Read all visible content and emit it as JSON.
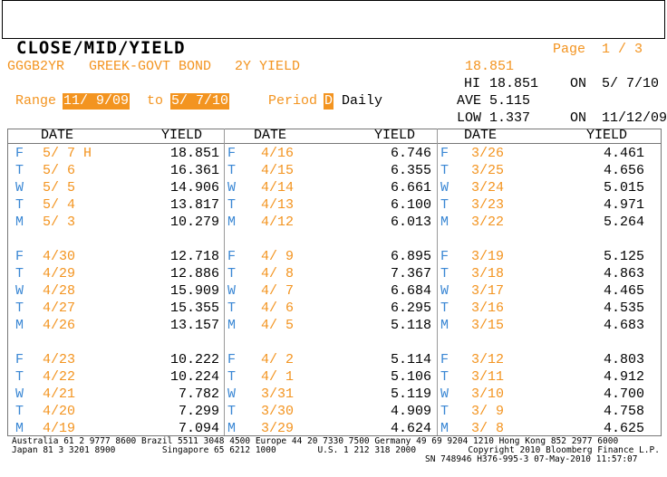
{
  "header": {
    "title": "CLOSE/MID/YIELD",
    "page": "Page  1 / 3",
    "ticker": "GGGB2YR",
    "security": "GREEK-GOVT BOND",
    "description": "2Y YIELD",
    "last": "18.851"
  },
  "stats": {
    "hi_label": "HI",
    "hi": "18.851",
    "hi_on": "ON",
    "hi_date": "5/ 7/10",
    "ave_label": "AVE",
    "ave": "5.115",
    "low_label": "LOW",
    "low": "1.337",
    "low_on": "ON",
    "low_date": "11/12/09"
  },
  "range": {
    "label": "Range",
    "start": "11/ 9/09",
    "to": "to",
    "end": "5/ 7/10",
    "period_label": "Period",
    "period_code": "D",
    "period_name": "Daily"
  },
  "table": {
    "columns": [
      {
        "date_header": "DATE",
        "yield_header": "YIELD",
        "rows": [
          [
            "F",
            "5/ 7 H",
            "18.851"
          ],
          [
            "T",
            "5/ 6",
            "16.361"
          ],
          [
            "W",
            "5/ 5",
            "14.906"
          ],
          [
            "T",
            "5/ 4",
            "13.817"
          ],
          [
            "M",
            "5/ 3",
            "10.279"
          ],
          [
            "F",
            "4/30",
            "12.718"
          ],
          [
            "T",
            "4/29",
            "12.886"
          ],
          [
            "W",
            "4/28",
            "15.909"
          ],
          [
            "T",
            "4/27",
            "15.355"
          ],
          [
            "M",
            "4/26",
            "13.157"
          ],
          [
            "F",
            "4/23",
            "10.222"
          ],
          [
            "T",
            "4/22",
            "10.224"
          ],
          [
            "W",
            "4/21",
            "7.782"
          ],
          [
            "T",
            "4/20",
            "7.299"
          ],
          [
            "M",
            "4/19",
            "7.094"
          ]
        ]
      },
      {
        "date_header": "DATE",
        "yield_header": "YIELD",
        "rows": [
          [
            "F",
            "4/16",
            "6.746"
          ],
          [
            "T",
            "4/15",
            "6.355"
          ],
          [
            "W",
            "4/14",
            "6.661"
          ],
          [
            "T",
            "4/13",
            "6.100"
          ],
          [
            "M",
            "4/12",
            "6.013"
          ],
          [
            "F",
            "4/ 9",
            "6.895"
          ],
          [
            "T",
            "4/ 8",
            "7.367"
          ],
          [
            "W",
            "4/ 7",
            "6.684"
          ],
          [
            "T",
            "4/ 6",
            "6.295"
          ],
          [
            "M",
            "4/ 5",
            "5.118"
          ],
          [
            "F",
            "4/ 2",
            "5.114"
          ],
          [
            "T",
            "4/ 1",
            "5.106"
          ],
          [
            "W",
            "3/31",
            "5.119"
          ],
          [
            "T",
            "3/30",
            "4.909"
          ],
          [
            "M",
            "3/29",
            "4.624"
          ]
        ]
      },
      {
        "date_header": "DATE",
        "yield_header": "YIELD",
        "rows": [
          [
            "F",
            "3/26",
            "4.461"
          ],
          [
            "T",
            "3/25",
            "4.656"
          ],
          [
            "W",
            "3/24",
            "5.015"
          ],
          [
            "T",
            "3/23",
            "4.971"
          ],
          [
            "M",
            "3/22",
            "5.264"
          ],
          [
            "F",
            "3/19",
            "5.125"
          ],
          [
            "T",
            "3/18",
            "4.863"
          ],
          [
            "W",
            "3/17",
            "4.465"
          ],
          [
            "T",
            "3/16",
            "4.535"
          ],
          [
            "M",
            "3/15",
            "4.683"
          ],
          [
            "F",
            "3/12",
            "4.803"
          ],
          [
            "T",
            "3/11",
            "4.912"
          ],
          [
            "W",
            "3/10",
            "4.700"
          ],
          [
            "T",
            "3/ 9",
            "4.758"
          ],
          [
            "M",
            "3/ 8",
            "4.625"
          ]
        ]
      }
    ]
  },
  "footer": [
    "Australia 61 2 9777 8600 Brazil 5511 3048 4500 Europe 44 20 7330 7500 Germany 49 69 9204 1210 Hong Kong 852 2977 6000",
    "Japan 81 3 3201 8900         Singapore 65 6212 1000        U.S. 1 212 318 2000          Copyright 2010 Bloomberg Finance L.P.",
    "SN 748946 H376-995-3 07-May-2010 11:57:07"
  ]
}
